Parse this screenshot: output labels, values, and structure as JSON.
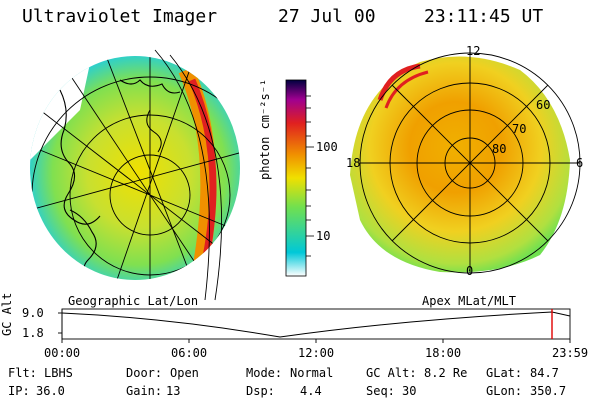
{
  "header": {
    "instrument": "Ultraviolet Imager",
    "date": "27 Jul 00",
    "time": "23:11:45 UT"
  },
  "panels": {
    "left_caption": "Geographic Lat/Lon",
    "right_caption": "Apex MLat/MLT",
    "mlt_labels": {
      "top": "12",
      "bottom": "0",
      "left": "18",
      "right": "6"
    },
    "mlat_labels": [
      "60",
      "70",
      "80"
    ]
  },
  "colorbar": {
    "unit_label": "photon cm⁻²s⁻¹",
    "tick_labels": [
      "100",
      "10"
    ],
    "colors": [
      "#ffffff",
      "#00c8d8",
      "#70e050",
      "#f0e000",
      "#f09000",
      "#e02020",
      "#a00090",
      "#000040"
    ]
  },
  "altitude_plot": {
    "axis_title": "GC Alt",
    "y_ticks": [
      "9.0",
      "1.8"
    ],
    "x_ticks": [
      "00:00",
      "06:00",
      "12:00",
      "18:00",
      "23:59"
    ],
    "current_marker_color": "#e00000"
  },
  "status": {
    "row1": [
      {
        "label": "Flt:",
        "value": "LBHS"
      },
      {
        "label": "Door:",
        "value": "Open"
      },
      {
        "label": "Mode:",
        "value": "Normal"
      },
      {
        "label": "GC Alt:",
        "value": "8.2 Re"
      },
      {
        "label": "GLat:",
        "value": "84.7"
      }
    ],
    "row2": [
      {
        "label": "IP:",
        "value": "36.0"
      },
      {
        "label": "Gain:",
        "value": "13"
      },
      {
        "label": "Dsp:",
        "value": "4.4"
      },
      {
        "label": "Seq:",
        "value": "30"
      },
      {
        "label": "GLon:",
        "value": "350.7"
      }
    ]
  }
}
